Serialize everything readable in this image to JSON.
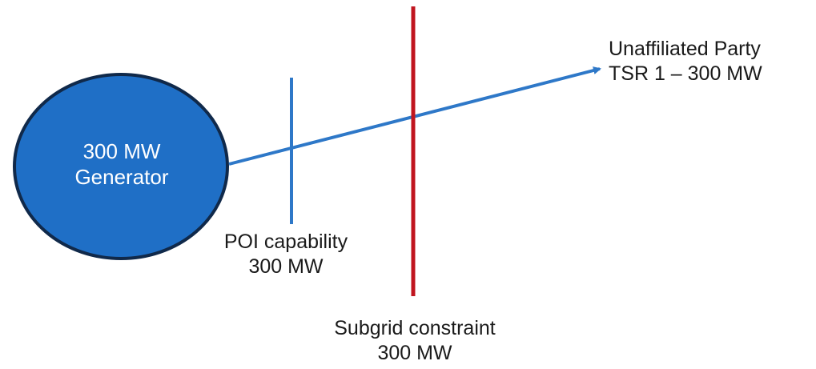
{
  "generator": {
    "line1": "300 MW",
    "line2": "Generator",
    "fill_color": "#1f6fc6",
    "stroke_color": "#10294a"
  },
  "poi": {
    "line1": "POI capability",
    "line2": "300 MW",
    "color": "#2e78c8"
  },
  "subgrid": {
    "line1": "Subgrid constraint",
    "line2": "300 MW",
    "color": "#c0151f"
  },
  "party": {
    "line1": "Unaffiliated Party",
    "line2": "TSR 1 – 300 MW"
  },
  "flow": {
    "color": "#2e78c8"
  }
}
